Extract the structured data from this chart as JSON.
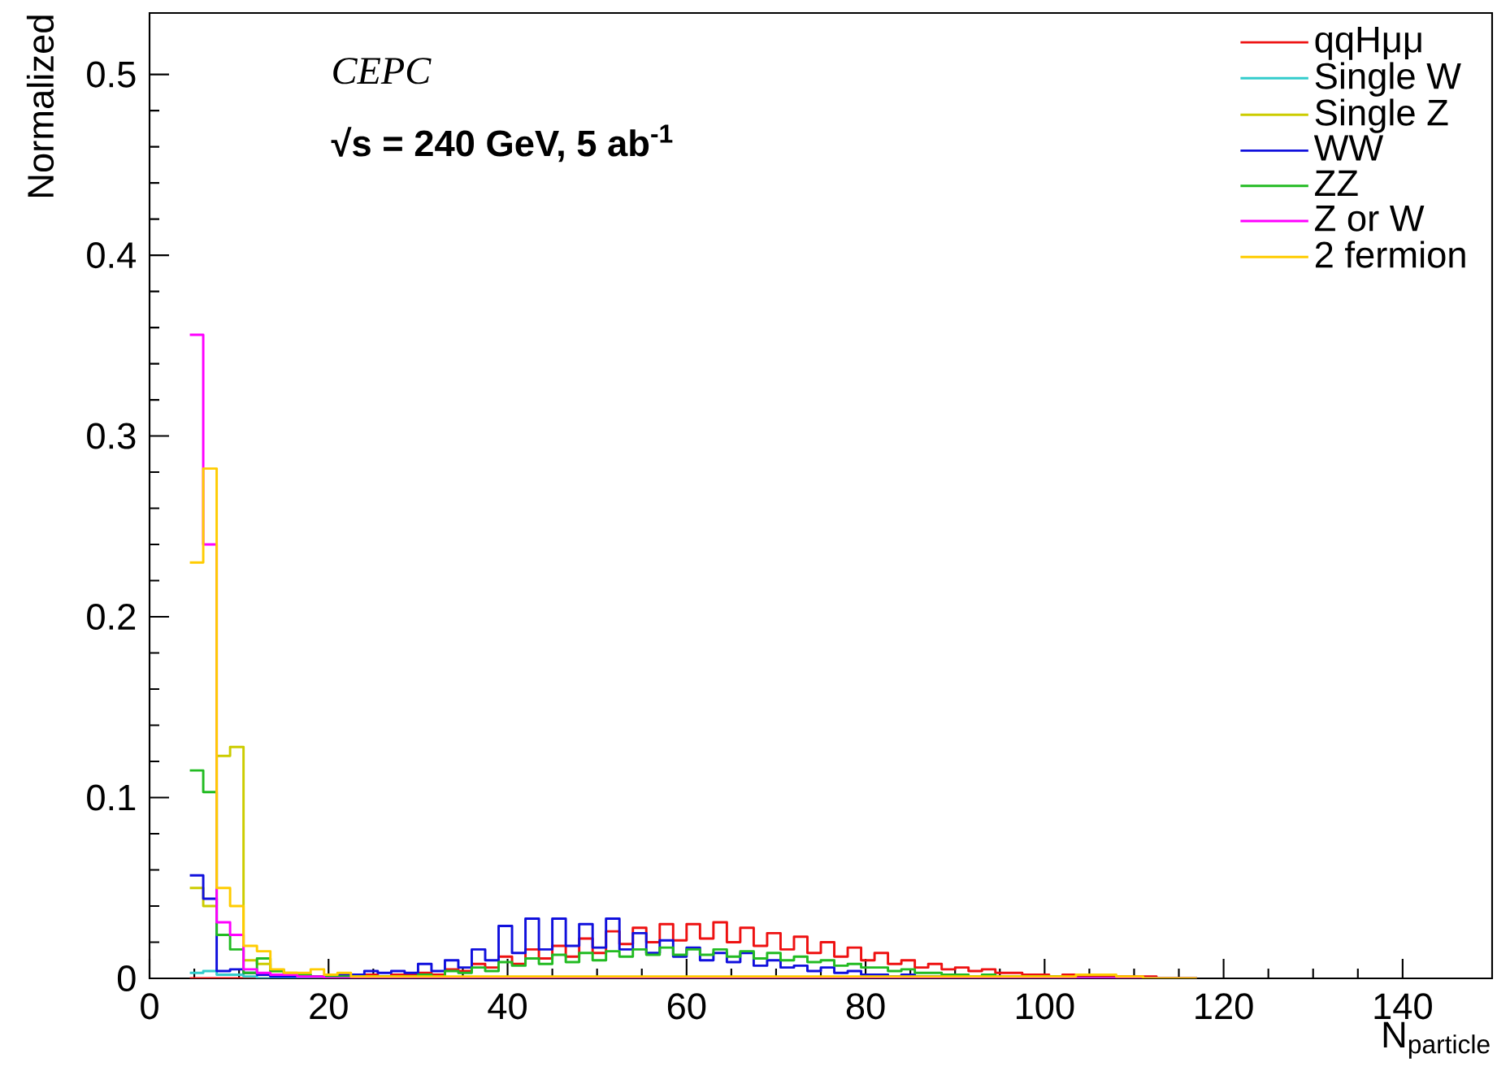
{
  "chart_data": {
    "type": "histogram",
    "xlabel": "N$_{particle}$",
    "ylabel": "Normalized",
    "annotations": [
      "CEPC",
      "√s = 240 GeV, 5 ab$^{-1}$"
    ],
    "xlim": [
      0,
      150
    ],
    "ylim": [
      0,
      0.534
    ],
    "xticks": [
      0,
      20,
      40,
      60,
      80,
      100,
      120,
      140
    ],
    "yticks": [
      0,
      0.1,
      0.2,
      0.3,
      0.4,
      0.5
    ],
    "legend": "top right",
    "bins": [
      4.5,
      6,
      7.5,
      9,
      10.5,
      12,
      13.5,
      15,
      16.5,
      18,
      19.5,
      21,
      22.5,
      24,
      25.5,
      27,
      28.5,
      30,
      31.5,
      33,
      34.5,
      36,
      37.5,
      39,
      40.5,
      42,
      43.5,
      45,
      46.5,
      48,
      49.5,
      51,
      52.5,
      54,
      55.5,
      57,
      58.5,
      60,
      61.5,
      63,
      64.5,
      66,
      67.5,
      69,
      70.5,
      72,
      73.5,
      75,
      76.5,
      78,
      79.5,
      81,
      82.5,
      84,
      85.5,
      87,
      88.5,
      90,
      91.5,
      93,
      94.5,
      96,
      97.5,
      99,
      100.5,
      102,
      103.5,
      105,
      106.5,
      108,
      109.5,
      111,
      112.5,
      114,
      115.5,
      117
    ],
    "series": [
      {
        "name": "qqHμμ",
        "color": "#ee1111",
        "values": [
          0,
          0,
          0,
          0,
          0,
          0,
          0.001,
          0.001,
          0.001,
          0.001,
          0.001,
          0.001,
          0.001,
          0.002,
          0.001,
          0.002,
          0.002,
          0.003,
          0.002,
          0.005,
          0.004,
          0.008,
          0.006,
          0.012,
          0.008,
          0.016,
          0.011,
          0.018,
          0.012,
          0.022,
          0.014,
          0.026,
          0.019,
          0.028,
          0.02,
          0.03,
          0.021,
          0.03,
          0.022,
          0.031,
          0.02,
          0.028,
          0.018,
          0.025,
          0.016,
          0.023,
          0.014,
          0.02,
          0.012,
          0.017,
          0.01,
          0.014,
          0.008,
          0.01,
          0.006,
          0.008,
          0.005,
          0.006,
          0.004,
          0.005,
          0.003,
          0.003,
          0.002,
          0.002,
          0.001,
          0.002,
          0.001,
          0.001,
          0.001,
          0.001,
          0.001,
          0.001,
          0,
          0,
          0
        ]
      },
      {
        "name": "Single W",
        "color": "#33cccc",
        "values": [
          0.003,
          0.004,
          0.002,
          0.002,
          0.001,
          0,
          0,
          0,
          0,
          0,
          0,
          0,
          0,
          0,
          0,
          0,
          0,
          0,
          0,
          0,
          0,
          0,
          0,
          0,
          0,
          0,
          0,
          0,
          0,
          0,
          0,
          0,
          0,
          0,
          0,
          0,
          0,
          0,
          0,
          0,
          0,
          0,
          0,
          0,
          0,
          0,
          0,
          0,
          0,
          0,
          0,
          0,
          0,
          0,
          0,
          0,
          0,
          0,
          0,
          0,
          0,
          0,
          0,
          0,
          0,
          0,
          0,
          0,
          0,
          0,
          0,
          0,
          0,
          0,
          0
        ]
      },
      {
        "name": "Single Z",
        "color": "#cccc00",
        "values": [
          0.05,
          0.04,
          0.123,
          0.128,
          0.01,
          0.008,
          0.004,
          0.003,
          0.002,
          0.001,
          0.001,
          0.001,
          0.001,
          0.001,
          0.001,
          0,
          0,
          0,
          0,
          0,
          0,
          0,
          0,
          0,
          0,
          0,
          0,
          0,
          0,
          0,
          0,
          0,
          0,
          0,
          0,
          0,
          0,
          0,
          0,
          0,
          0,
          0,
          0,
          0,
          0,
          0,
          0,
          0,
          0,
          0,
          0,
          0,
          0,
          0,
          0,
          0,
          0,
          0,
          0,
          0,
          0,
          0,
          0,
          0,
          0,
          0,
          0,
          0,
          0,
          0,
          0,
          0,
          0,
          0,
          0
        ]
      },
      {
        "name": "WW",
        "color": "#1010dd",
        "values": [
          0.057,
          0.044,
          0.004,
          0.005,
          0.003,
          0.002,
          0.001,
          0.001,
          0.001,
          0.001,
          0.001,
          0.002,
          0.002,
          0.004,
          0.003,
          0.004,
          0.003,
          0.008,
          0.004,
          0.01,
          0.006,
          0.016,
          0.01,
          0.029,
          0.014,
          0.033,
          0.016,
          0.033,
          0.018,
          0.03,
          0.017,
          0.033,
          0.016,
          0.025,
          0.014,
          0.021,
          0.012,
          0.017,
          0.01,
          0.014,
          0.009,
          0.014,
          0.007,
          0.01,
          0.006,
          0.007,
          0.004,
          0.006,
          0.003,
          0.004,
          0.002,
          0.002,
          0.001,
          0.002,
          0.001,
          0.001,
          0,
          0,
          0,
          0,
          0,
          0,
          0,
          0,
          0,
          0,
          0,
          0,
          0,
          0,
          0,
          0,
          0,
          0,
          0
        ]
      },
      {
        "name": "ZZ",
        "color": "#22bb22",
        "values": [
          0.115,
          0.103,
          0.024,
          0.016,
          0.003,
          0.011,
          0.004,
          0.002,
          0.002,
          0.001,
          0.001,
          0.001,
          0.001,
          0.001,
          0.001,
          0.001,
          0.001,
          0.002,
          0.001,
          0.004,
          0.003,
          0.006,
          0.004,
          0.009,
          0.007,
          0.011,
          0.008,
          0.013,
          0.009,
          0.014,
          0.01,
          0.015,
          0.012,
          0.016,
          0.013,
          0.017,
          0.013,
          0.016,
          0.013,
          0.016,
          0.012,
          0.015,
          0.011,
          0.014,
          0.01,
          0.012,
          0.009,
          0.01,
          0.007,
          0.008,
          0.006,
          0.006,
          0.004,
          0.005,
          0.003,
          0.003,
          0.002,
          0.002,
          0.001,
          0.002,
          0.001,
          0.001,
          0.001,
          0.001,
          0.001,
          0,
          0,
          0,
          0,
          0,
          0,
          0,
          0,
          0,
          0
        ]
      },
      {
        "name": "Z or W",
        "color": "#ff00ff",
        "values": [
          0.356,
          0.24,
          0.031,
          0.024,
          0.005,
          0.003,
          0.002,
          0.002,
          0.001,
          0.001,
          0,
          0,
          0,
          0,
          0,
          0,
          0,
          0,
          0,
          0,
          0,
          0,
          0,
          0,
          0,
          0,
          0,
          0,
          0,
          0,
          0,
          0,
          0,
          0,
          0,
          0,
          0,
          0,
          0,
          0,
          0,
          0,
          0,
          0,
          0,
          0,
          0,
          0,
          0,
          0,
          0,
          0,
          0,
          0,
          0,
          0,
          0,
          0,
          0,
          0,
          0,
          0,
          0,
          0,
          0,
          0,
          0,
          0,
          0,
          0,
          0,
          0,
          0,
          0,
          0
        ]
      },
      {
        "name": "2 fermion",
        "color": "#ffcc00",
        "values": [
          0.23,
          0.282,
          0.05,
          0.04,
          0.018,
          0.015,
          0.005,
          0.003,
          0.003,
          0.005,
          0.002,
          0.003,
          0.001,
          0.001,
          0.001,
          0.001,
          0.001,
          0.001,
          0.001,
          0.001,
          0.001,
          0.001,
          0.001,
          0.001,
          0.001,
          0.001,
          0.001,
          0.001,
          0.001,
          0.001,
          0.001,
          0.001,
          0.001,
          0.001,
          0.001,
          0.001,
          0.001,
          0.001,
          0.001,
          0.001,
          0.001,
          0.001,
          0.001,
          0.001,
          0.001,
          0.001,
          0.001,
          0.001,
          0.001,
          0.001,
          0.001,
          0.001,
          0.001,
          0.001,
          0.001,
          0.001,
          0.001,
          0.001,
          0.001,
          0.001,
          0.001,
          0.001,
          0.001,
          0.001,
          0.001,
          0.001,
          0.002,
          0.002,
          0.002,
          0.001,
          0.001,
          0,
          0,
          0,
          0
        ]
      }
    ]
  }
}
